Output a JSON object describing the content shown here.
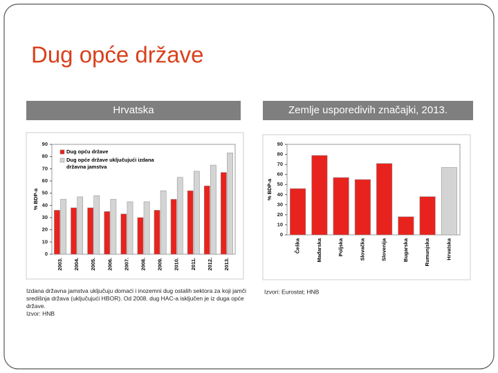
{
  "slide": {
    "title": "Dug opće države",
    "headers": [
      "Hrvatska",
      "Zemlje usporedivih značajki, 2013."
    ],
    "notes": [
      "Izdana državna jamstva uključuju domaći i inozemni dug ostalih sektora za koji jamči središnja država (uključujući HBOR). Od 2008. dug HAC-a isključen je iz duga opće države.",
      "Izvor: HNB",
      "Izvori: Eurostat; HNB"
    ]
  },
  "chart_data": [
    {
      "type": "bar",
      "y_label": "% BDP-a",
      "categories": [
        "2003.",
        "2004.",
        "2005.",
        "2006.",
        "2007.",
        "2008.",
        "2009.",
        "2010.",
        "2011.",
        "2012.",
        "2013."
      ],
      "series": [
        {
          "name": "Dug opću države",
          "color": "#e8231e",
          "values": [
            36,
            38,
            38,
            35,
            33,
            30,
            36,
            45,
            52,
            56,
            67
          ]
        },
        {
          "name": "Dug opće države uključujući izdana državna jamstva",
          "color": "#d4d4d4",
          "values": [
            45,
            47,
            48,
            45,
            43,
            43,
            52,
            63,
            68,
            73,
            83
          ]
        }
      ],
      "ylim": [
        0,
        90
      ],
      "yticks": [
        0,
        10,
        20,
        30,
        40,
        50,
        60,
        70,
        80,
        90
      ],
      "legend": "top-left"
    },
    {
      "type": "bar",
      "y_label": "% BDP-a",
      "categories": [
        "Češka",
        "Mađarska",
        "Poljska",
        "Slovačka",
        "Slovenija",
        "Bugarska",
        "Rumunjska",
        "Hrvatska"
      ],
      "values": [
        46,
        79,
        57,
        55,
        71,
        18,
        38,
        67
      ],
      "colors": [
        "#e8231e",
        "#e8231e",
        "#e8231e",
        "#e8231e",
        "#e8231e",
        "#e8231e",
        "#e8231e",
        "#d4d4d4"
      ],
      "ylim": [
        0,
        90
      ],
      "yticks": [
        0,
        10,
        20,
        30,
        40,
        50,
        60,
        70,
        80,
        90
      ]
    }
  ]
}
